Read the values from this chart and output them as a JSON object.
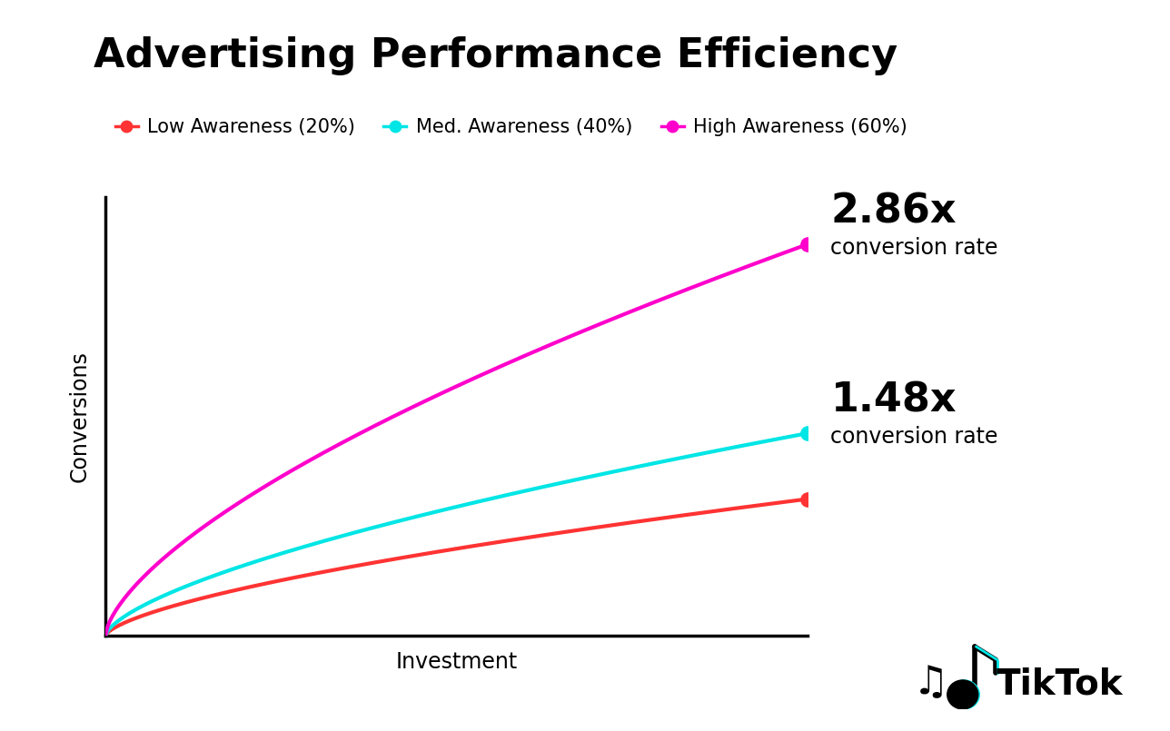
{
  "title": "Advertising Performance Efficiency",
  "xlabel": "Investment",
  "ylabel": "Conversions",
  "background_color": "#ffffff",
  "lines": [
    {
      "label": "Low Awareness (20%)",
      "color": "#FF3333",
      "multiplier": 1.0,
      "linewidth": 3.0
    },
    {
      "label": "Med. Awareness (40%)",
      "color": "#00E5E5",
      "multiplier": 1.48,
      "linewidth": 3.0
    },
    {
      "label": "High Awareness (60%)",
      "color": "#FF00CC",
      "multiplier": 2.86,
      "linewidth": 3.0
    }
  ],
  "curve_power": 0.65,
  "ann_high_bold": "2.86x",
  "ann_high_small": "conversion rate",
  "ann_med_bold": "1.48x",
  "ann_med_small": "conversion rate",
  "xlim": [
    0,
    1.0
  ],
  "ylim": [
    0,
    1.0
  ],
  "title_fontsize": 32,
  "axis_label_fontsize": 17,
  "legend_fontsize": 15,
  "ann_bold_fontsize": 32,
  "ann_small_fontsize": 17,
  "grid_color": "#cccccc",
  "axis_color": "#000000",
  "marker_size": 11,
  "tiktok_text": "TikTok"
}
